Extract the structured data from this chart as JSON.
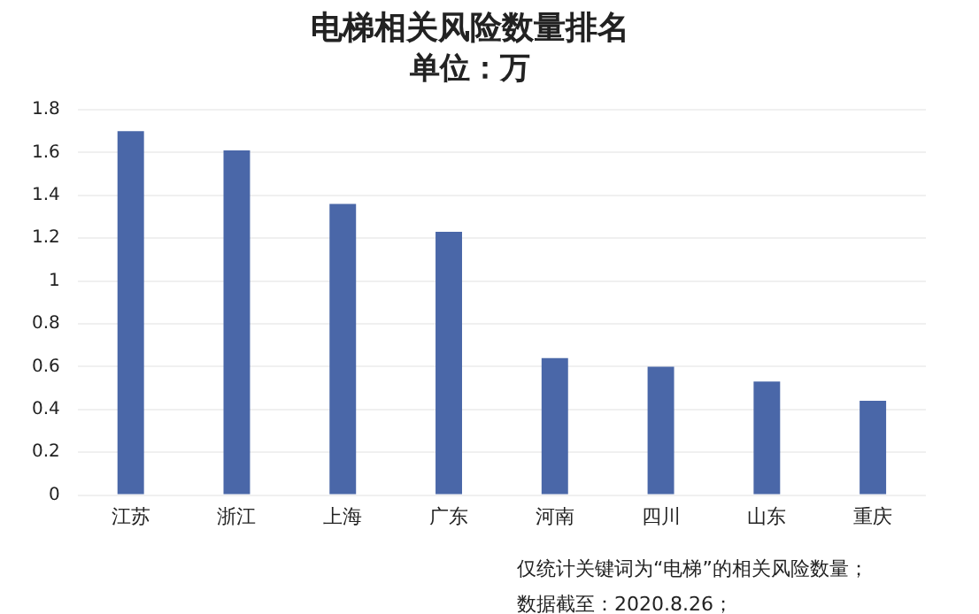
{
  "chart_data": {
    "type": "bar",
    "title": "电梯相关风险数量排名",
    "subtitle": "单位：万",
    "categories": [
      "江苏",
      "浙江",
      "上海",
      "广东",
      "河南",
      "四川",
      "山东",
      "重庆"
    ],
    "values": [
      1.7,
      1.61,
      1.36,
      1.23,
      0.64,
      0.6,
      0.53,
      0.44
    ],
    "color": "#4a67a8",
    "ylim": [
      0,
      1.8
    ],
    "yticks": [
      0,
      0.2,
      0.4,
      0.6,
      0.8,
      1,
      1.2,
      1.4,
      1.6,
      1.8
    ],
    "grid": "y",
    "legend": false,
    "annotations": [
      "仅统计关键词为“电梯”的相关风险数量；",
      "数据截至：2020.8.26；"
    ]
  }
}
